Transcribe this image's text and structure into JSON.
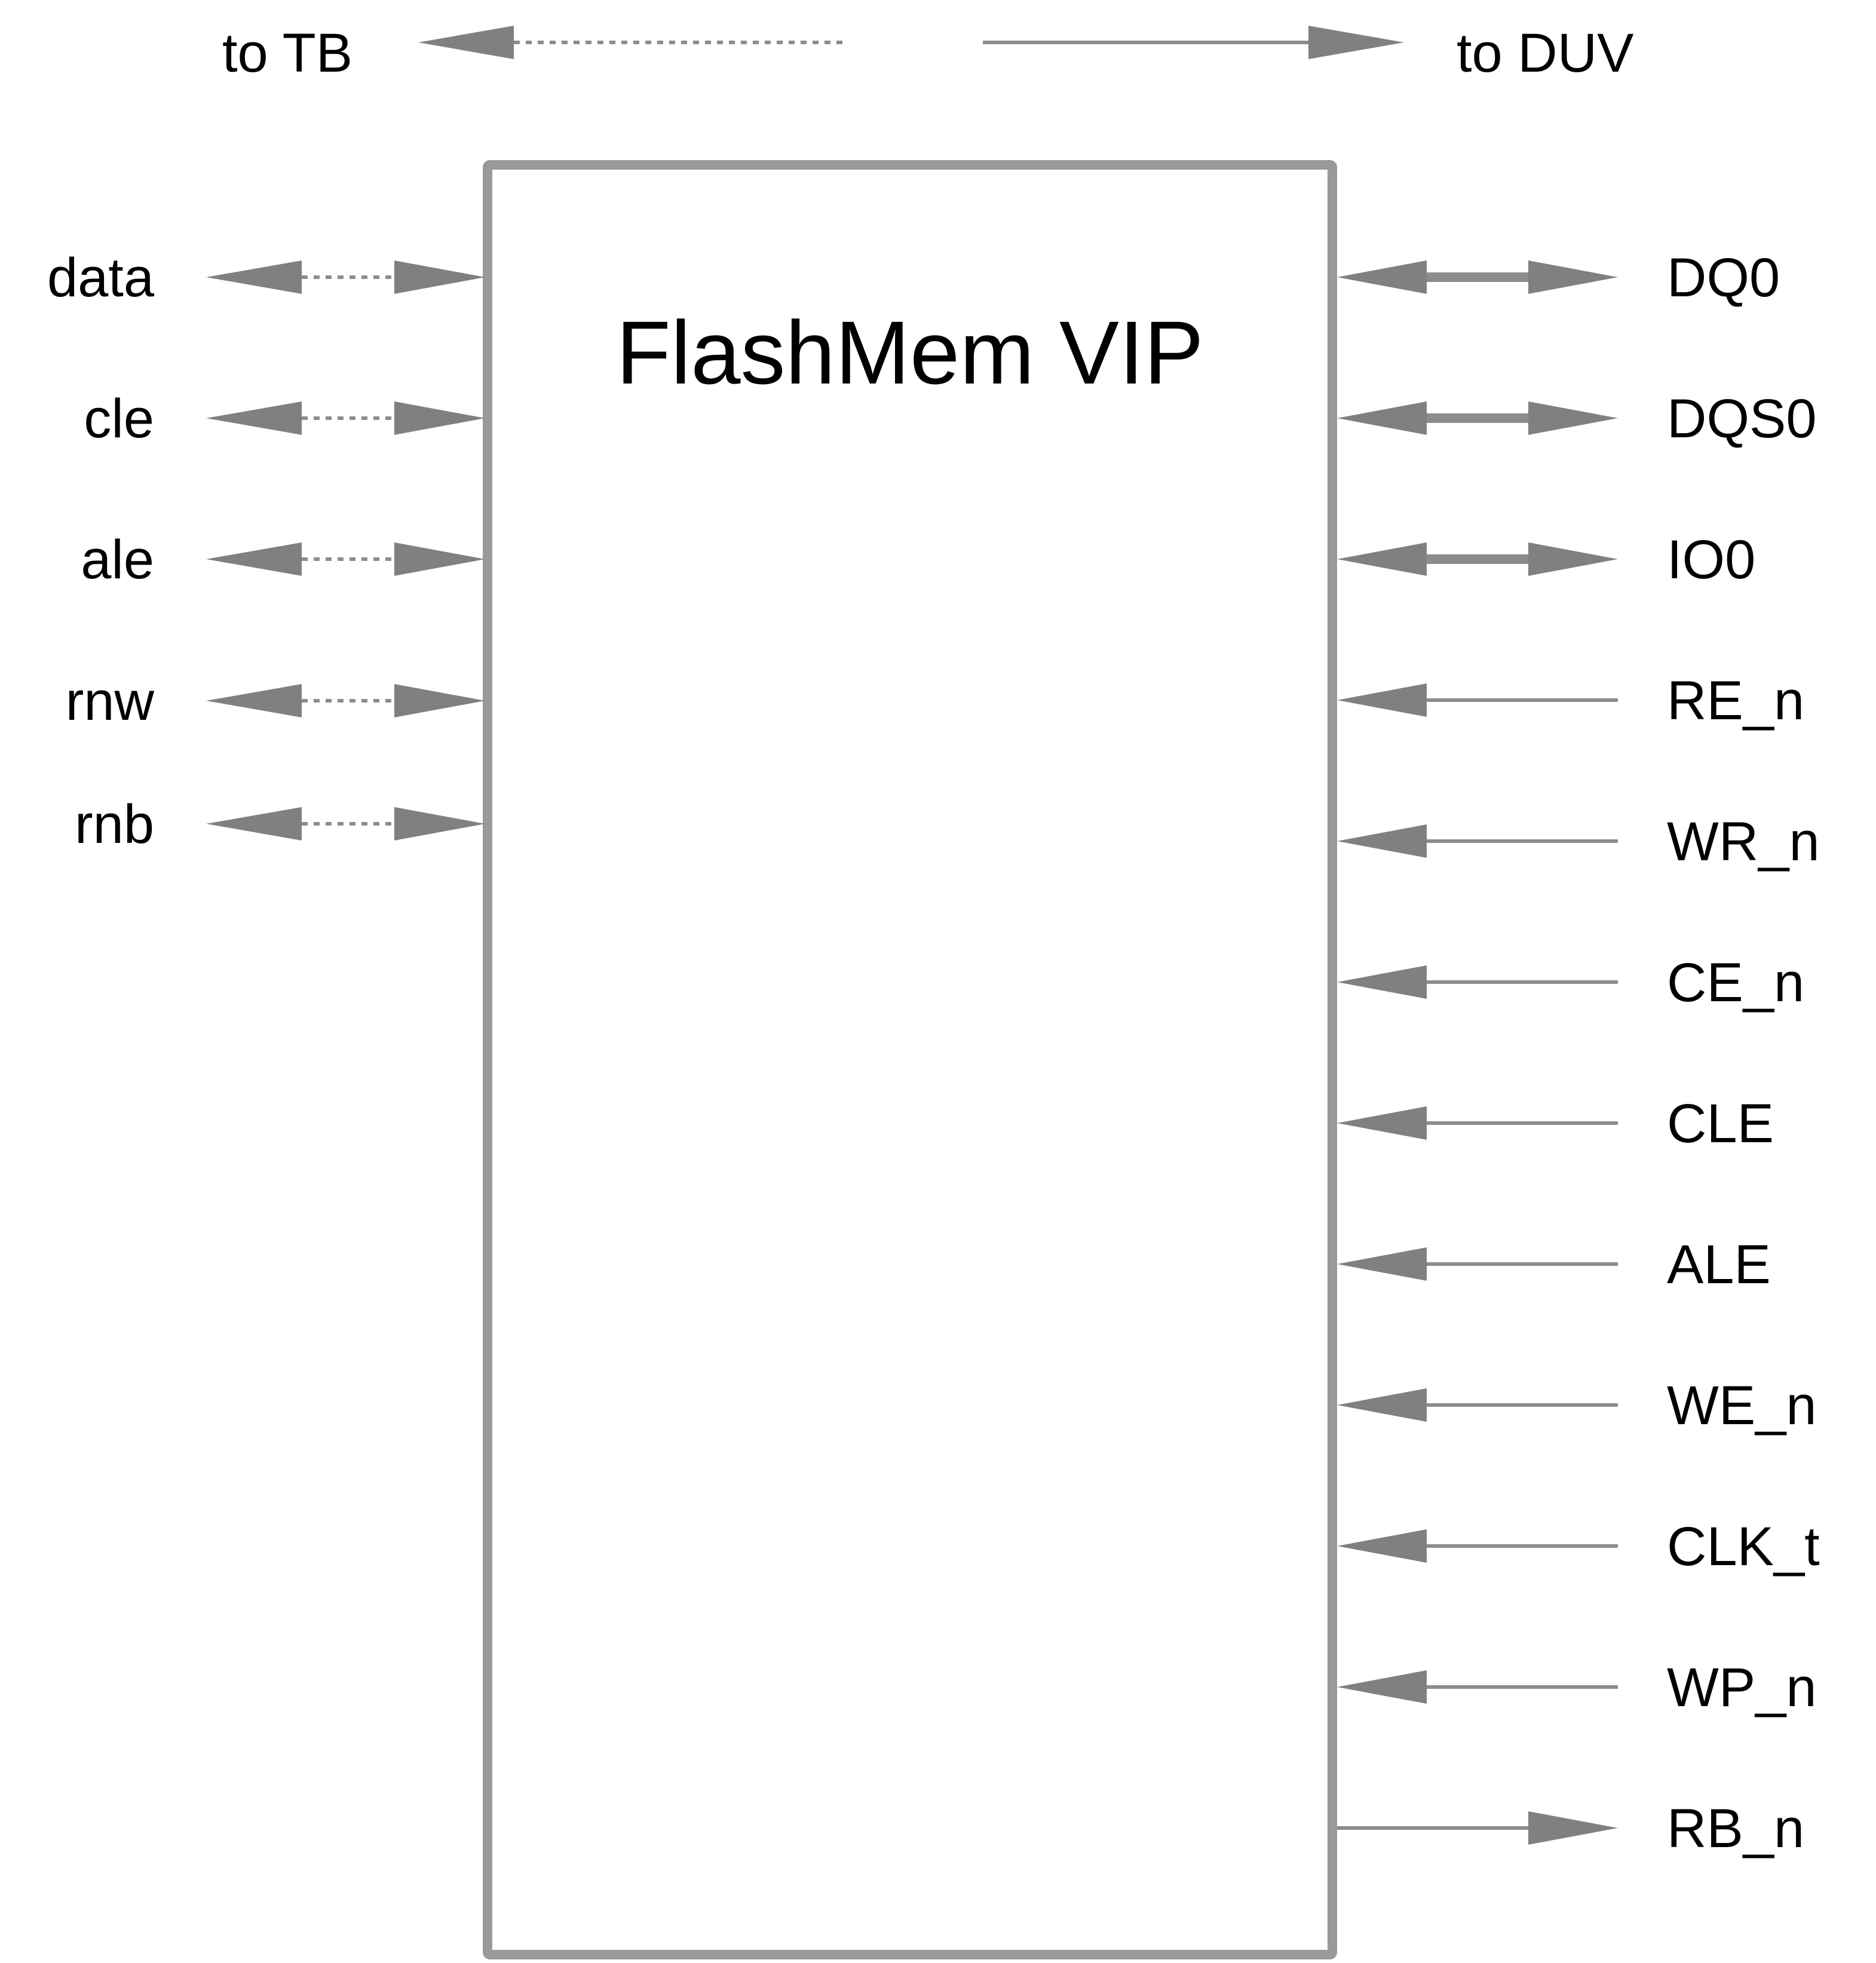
{
  "legend": {
    "to_tb_label": "to TB",
    "to_duv_label": "to DUV"
  },
  "block": {
    "title": "FlashMem VIP"
  },
  "tb_signals": [
    {
      "name": "data",
      "direction": "bidirectional",
      "style": "dotted"
    },
    {
      "name": "cle",
      "direction": "bidirectional",
      "style": "dotted"
    },
    {
      "name": "ale",
      "direction": "bidirectional",
      "style": "dotted"
    },
    {
      "name": "rnw",
      "direction": "bidirectional",
      "style": "dotted"
    },
    {
      "name": "rnb",
      "direction": "bidirectional",
      "style": "dotted"
    }
  ],
  "duv_signals": [
    {
      "name": "DQ0",
      "direction": "bidirectional",
      "style": "thick"
    },
    {
      "name": "DQS0",
      "direction": "bidirectional",
      "style": "thick"
    },
    {
      "name": "IO0",
      "direction": "bidirectional",
      "style": "thick"
    },
    {
      "name": "RE_n",
      "direction": "input",
      "style": "solid"
    },
    {
      "name": "WR_n",
      "direction": "input",
      "style": "solid"
    },
    {
      "name": "CE_n",
      "direction": "input",
      "style": "solid"
    },
    {
      "name": "CLE",
      "direction": "input",
      "style": "solid"
    },
    {
      "name": "ALE",
      "direction": "input",
      "style": "solid"
    },
    {
      "name": "WE_n",
      "direction": "input",
      "style": "solid"
    },
    {
      "name": "CLK_t",
      "direction": "input",
      "style": "solid"
    },
    {
      "name": "WP_n",
      "direction": "input",
      "style": "solid"
    },
    {
      "name": "RB_n",
      "direction": "output",
      "style": "solid"
    }
  ],
  "colors": {
    "line": "#8c8c8c",
    "arrowhead": "#808080",
    "text": "#000000",
    "background": "#ffffff"
  }
}
